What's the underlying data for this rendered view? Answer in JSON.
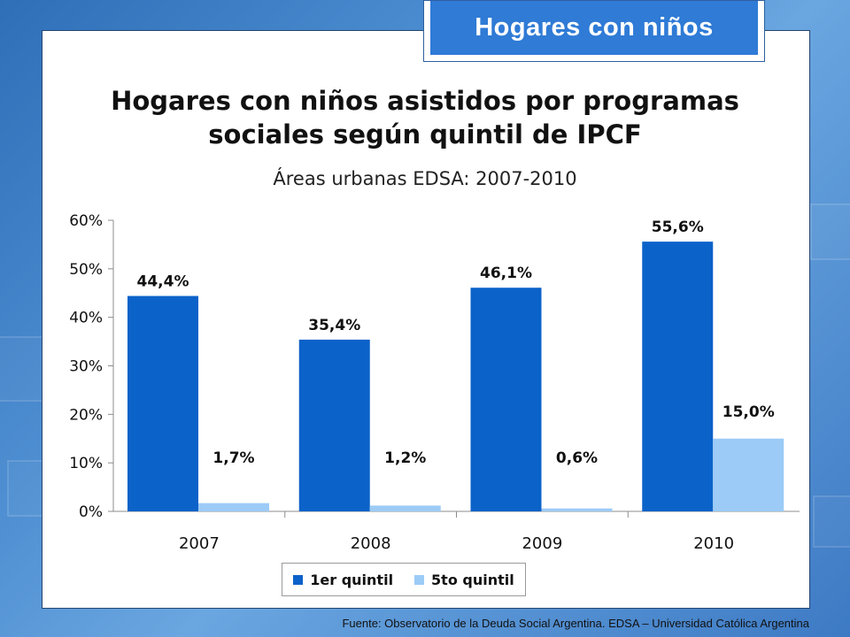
{
  "badge": {
    "text": "Hogares con niños"
  },
  "header": {
    "title_line1": "Hogares con niños asistidos por programas",
    "title_line2": "sociales según quintil de IPCF",
    "subtitle": "Áreas urbanas EDSA: 2007-2010"
  },
  "footer": {
    "source": "Fuente:  Observatorio de  la Deuda Social Argentina. EDSA – Universidad Católica Argentina"
  },
  "colors": {
    "primary": "#0b62c9",
    "secondary": "#9ccbf7",
    "background": "#3d7ac4",
    "badge": "#2f7bd6"
  },
  "chart_data": {
    "type": "bar",
    "categories": [
      "2007",
      "2008",
      "2009",
      "2010"
    ],
    "series": [
      {
        "name": "1er quintil",
        "values": [
          44.4,
          35.4,
          46.1,
          55.6
        ],
        "labels": [
          "44,4%",
          "35,4%",
          "46,1%",
          "55,6%"
        ]
      },
      {
        "name": "5to quintil",
        "values": [
          1.7,
          1.2,
          0.6,
          15.0
        ],
        "labels": [
          "1,7%",
          "1,2%",
          "0,6%",
          "15,0%"
        ]
      }
    ],
    "ylim": [
      0,
      60
    ],
    "yticks": [
      "0%",
      "10%",
      "20%",
      "30%",
      "40%",
      "50%",
      "60%"
    ],
    "grid": false,
    "legend": "bottom"
  }
}
